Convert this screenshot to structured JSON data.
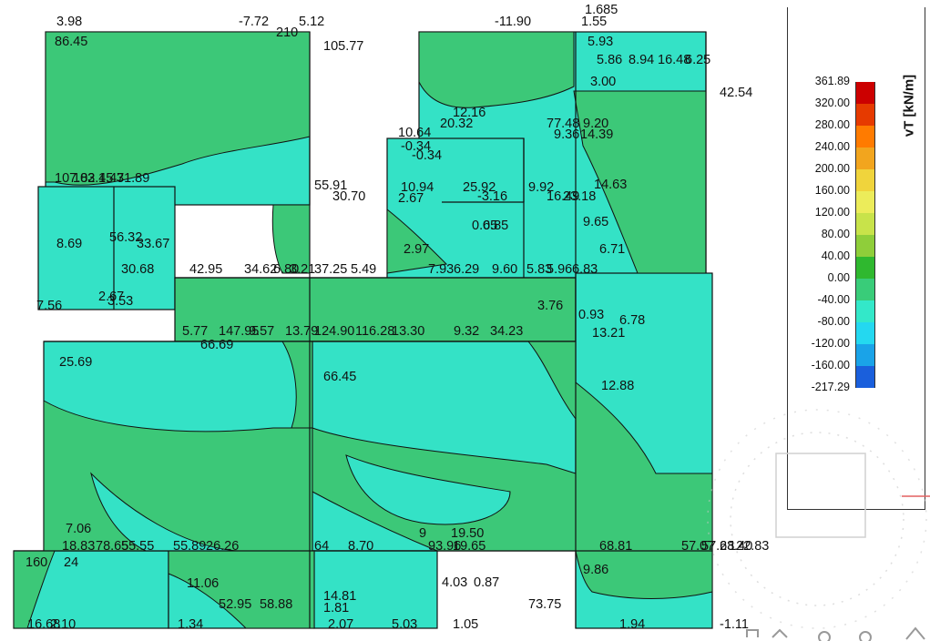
{
  "legend": {
    "unit": "vT [kN/m]",
    "ticks": [
      "361.89",
      "320.00",
      "280.00",
      "240.00",
      "200.00",
      "160.00",
      "120.00",
      "80.00",
      "40.00",
      "0.00",
      "-40.00",
      "-80.00",
      "-120.00",
      "-160.00",
      "-217.29"
    ],
    "colors": [
      "#cc0000",
      "#e63a00",
      "#ff7b00",
      "#f2a51e",
      "#f0d43c",
      "#ecec5a",
      "#c8e34a",
      "#8fce3a",
      "#2fb82f",
      "#39cc79",
      "#33e8c9",
      "#24d8f0",
      "#1aa3e8",
      "#1a5fdc",
      "#2020c8"
    ]
  },
  "colors": {
    "contour_green": "#3cc878",
    "contour_cyan": "#34e2c6",
    "outline": "#111111",
    "navcube": "#c8c8c8"
  },
  "labels": [
    "3.98",
    "-7.72",
    "210",
    "5.12",
    "86.45",
    "105.77",
    "-11.90",
    "1.685",
    "1.55",
    "5.93",
    "5.86",
    "8.94",
    "16.48",
    "6.25",
    "3.00",
    "42.54",
    "12.16",
    "20.32",
    "77.48",
    "9.20",
    "9.36",
    "14.39",
    "10.64",
    "-0.34",
    "-0.34",
    "107.82",
    "103.45",
    "1.47",
    "31.89",
    "55.91",
    "30.70",
    "10.94",
    "2.67",
    "25.92",
    "-3.16",
    "9.92",
    "16.49",
    "23.18",
    "14.63",
    "0.65",
    "9.65",
    "8.69",
    "56.32",
    "33.67",
    "2.97",
    "0.85",
    "6.71",
    "30.68",
    "42.95",
    "34.62",
    "6.80",
    "3.21",
    "37.25",
    "5.49",
    "7.93",
    "6.29",
    "9.60",
    "5.83",
    "5.96",
    "6.83",
    "7.56",
    "2.67",
    "3.53",
    "0.93",
    "6.78",
    "5.77",
    "147.95",
    "9.57",
    "13.79",
    "124.90",
    "116.28",
    "13.30",
    "9.32",
    "34.23",
    "13.21",
    "66.69",
    "25.69",
    "66.45",
    "12.88",
    "7.06",
    "18.83",
    "78.65",
    "55.55",
    "55.89",
    "26.26",
    "64",
    "8.70",
    "9",
    "19.50",
    "93.96",
    "19.65",
    "68.81",
    "57.07",
    "57.68",
    "23.40",
    "122.83",
    "160",
    "24",
    "11.06",
    "4.03",
    "0.87",
    "9.86",
    "52.95",
    "58.88",
    "14.81",
    "1.81",
    "73.75",
    "16.68",
    "2.10",
    "1.34",
    "2.07",
    "5.03",
    "1.05",
    "1.94",
    "-1.11",
    "3.76"
  ]
}
